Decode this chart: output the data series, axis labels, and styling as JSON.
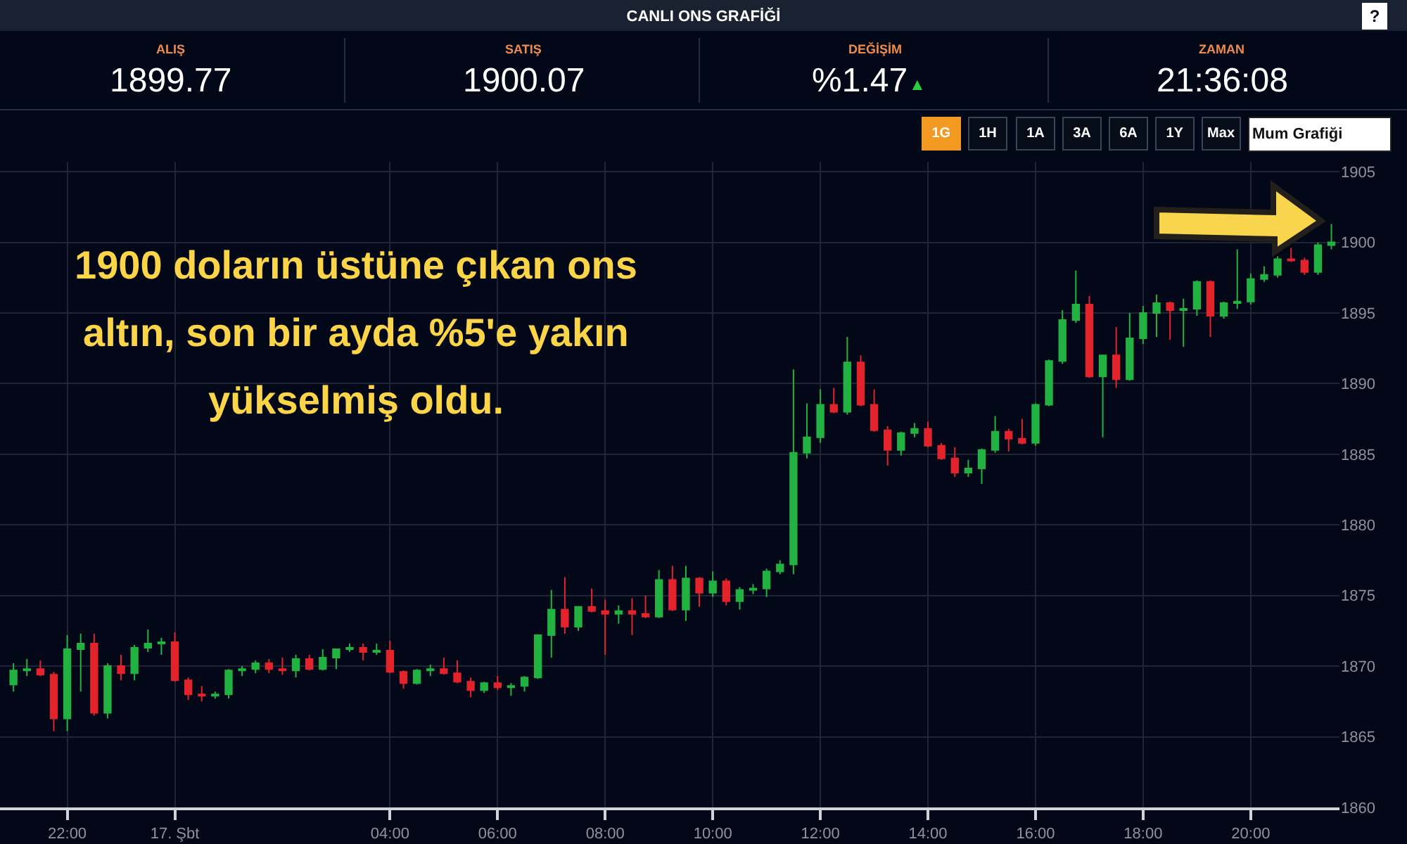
{
  "chart_data": {
    "type": "candlestick",
    "title": "CANLI ONS GRAFİĞİ",
    "x": [
      "--02-16T21:00",
      "--02-16T21:15",
      "--02-16T21:30",
      "--02-16T21:45",
      "--02-16T22:00",
      "--02-16T22:15",
      "--02-16T22:30",
      "--02-16T22:45",
      "--02-16T23:00",
      "--02-16T23:15",
      "--02-16T23:30",
      "--02-16T23:45",
      "--02-17T00:00",
      "--02-17T00:15",
      "--02-17T00:30",
      "--02-17T00:45",
      "--02-17T01:00",
      "--02-17T01:15",
      "--02-17T01:30",
      "--02-17T01:45",
      "--02-17T02:00",
      "--02-17T02:15",
      "--02-17T02:30",
      "--02-17T02:45",
      "--02-17T03:00",
      "--02-17T03:15",
      "--02-17T03:30",
      "--02-17T03:45",
      "--02-17T04:00",
      "--02-17T04:15",
      "--02-17T04:30",
      "--02-17T04:45",
      "--02-17T05:00",
      "--02-17T05:15",
      "--02-17T05:30",
      "--02-17T05:45",
      "--02-17T06:00",
      "--02-17T06:15",
      "--02-17T06:30",
      "--02-17T06:45",
      "--02-17T07:00",
      "--02-17T07:15",
      "--02-17T07:30",
      "--02-17T07:45",
      "--02-17T08:00",
      "--02-17T08:15",
      "--02-17T08:30",
      "--02-17T08:45",
      "--02-17T09:00",
      "--02-17T09:15",
      "--02-17T09:30",
      "--02-17T09:45",
      "--02-17T10:00",
      "--02-17T10:15",
      "--02-17T10:30",
      "--02-17T10:45",
      "--02-17T11:00",
      "--02-17T11:15",
      "--02-17T11:30",
      "--02-17T11:45",
      "--02-17T12:00",
      "--02-17T12:15",
      "--02-17T12:30",
      "--02-17T12:45",
      "--02-17T13:00",
      "--02-17T13:15",
      "--02-17T13:30",
      "--02-17T13:45",
      "--02-17T14:00",
      "--02-17T14:15",
      "--02-17T14:30",
      "--02-17T14:45",
      "--02-17T15:00",
      "--02-17T15:15",
      "--02-17T15:30",
      "--02-17T15:45",
      "--02-17T16:00",
      "--02-17T16:15",
      "--02-17T16:30",
      "--02-17T16:45",
      "--02-17T17:00",
      "--02-17T17:15",
      "--02-17T17:30",
      "--02-17T17:45",
      "--02-17T18:00",
      "--02-17T18:15",
      "--02-17T18:30",
      "--02-17T18:45",
      "--02-17T19:00",
      "--02-17T19:15",
      "--02-17T19:30",
      "--02-17T19:45",
      "--02-17T20:00",
      "--02-17T20:15",
      "--02-17T20:30",
      "--02-17T20:45",
      "--02-17T21:00",
      "--02-17T21:15",
      "--02-17T21:30"
    ],
    "ohlc": [
      [
        1868.7,
        1870.2,
        1868.2,
        1869.7
      ],
      [
        1869.7,
        1870.5,
        1869.3,
        1869.8
      ],
      [
        1869.8,
        1870.4,
        1869.3,
        1869.4
      ],
      [
        1869.4,
        1869.6,
        1865.4,
        1866.3
      ],
      [
        1866.3,
        1872.2,
        1865.4,
        1871.2
      ],
      [
        1871.2,
        1872.3,
        1868.2,
        1871.6
      ],
      [
        1871.6,
        1872.3,
        1866.5,
        1866.7
      ],
      [
        1866.7,
        1870.2,
        1866.3,
        1870.0
      ],
      [
        1870.0,
        1870.8,
        1869.0,
        1869.5
      ],
      [
        1869.5,
        1871.5,
        1869.0,
        1871.3
      ],
      [
        1871.3,
        1872.6,
        1871.0,
        1871.6
      ],
      [
        1871.6,
        1872.0,
        1870.8,
        1871.7
      ],
      [
        1871.7,
        1872.4,
        1868.9,
        1869.0
      ],
      [
        1869.0,
        1869.2,
        1867.6,
        1868.0
      ],
      [
        1868.0,
        1868.6,
        1867.5,
        1867.9
      ],
      [
        1867.9,
        1868.2,
        1867.7,
        1868.0
      ],
      [
        1868.0,
        1869.8,
        1867.7,
        1869.7
      ],
      [
        1869.7,
        1870.0,
        1869.3,
        1869.8
      ],
      [
        1869.8,
        1870.4,
        1869.5,
        1870.2
      ],
      [
        1870.2,
        1870.5,
        1869.5,
        1869.8
      ],
      [
        1869.8,
        1870.6,
        1869.4,
        1869.7
      ],
      [
        1869.7,
        1870.8,
        1869.2,
        1870.5
      ],
      [
        1870.5,
        1870.8,
        1869.7,
        1869.8
      ],
      [
        1869.8,
        1871.2,
        1869.7,
        1870.6
      ],
      [
        1870.6,
        1871.2,
        1869.8,
        1871.2
      ],
      [
        1871.2,
        1871.6,
        1871.0,
        1871.3
      ],
      [
        1871.3,
        1871.6,
        1870.4,
        1871.0
      ],
      [
        1871.0,
        1871.6,
        1870.8,
        1871.1
      ],
      [
        1871.1,
        1871.8,
        1869.5,
        1869.6
      ],
      [
        1869.6,
        1869.7,
        1868.4,
        1868.8
      ],
      [
        1868.8,
        1869.8,
        1868.7,
        1869.7
      ],
      [
        1869.7,
        1870.1,
        1869.3,
        1869.8
      ],
      [
        1869.8,
        1870.6,
        1869.4,
        1869.5
      ],
      [
        1869.5,
        1870.4,
        1868.8,
        1868.9
      ],
      [
        1868.9,
        1869.2,
        1867.8,
        1868.3
      ],
      [
        1868.3,
        1868.9,
        1868.1,
        1868.8
      ],
      [
        1868.8,
        1869.3,
        1868.3,
        1868.5
      ],
      [
        1868.5,
        1868.8,
        1867.9,
        1868.6
      ],
      [
        1868.6,
        1869.3,
        1868.2,
        1869.2
      ],
      [
        1869.2,
        1872.2,
        1869.1,
        1872.2
      ],
      [
        1872.2,
        1875.4,
        1870.6,
        1874.0
      ],
      [
        1874.0,
        1876.3,
        1872.3,
        1872.8
      ],
      [
        1872.8,
        1874.2,
        1872.5,
        1874.2
      ],
      [
        1874.2,
        1875.5,
        1873.8,
        1873.9
      ],
      [
        1873.9,
        1874.7,
        1870.8,
        1873.7
      ],
      [
        1873.7,
        1874.3,
        1873.0,
        1873.9
      ],
      [
        1873.9,
        1874.8,
        1872.2,
        1873.7
      ],
      [
        1873.7,
        1875.0,
        1873.4,
        1873.5
      ],
      [
        1873.5,
        1876.8,
        1873.4,
        1876.1
      ],
      [
        1876.1,
        1877.1,
        1873.9,
        1874.0
      ],
      [
        1874.0,
        1877.1,
        1873.2,
        1876.2
      ],
      [
        1876.2,
        1876.3,
        1874.2,
        1875.2
      ],
      [
        1875.2,
        1876.7,
        1874.9,
        1876.0
      ],
      [
        1876.0,
        1876.2,
        1874.3,
        1874.6
      ],
      [
        1874.6,
        1875.6,
        1874.0,
        1875.4
      ],
      [
        1875.4,
        1875.8,
        1875.1,
        1875.5
      ],
      [
        1875.5,
        1876.9,
        1874.9,
        1876.7
      ],
      [
        1876.7,
        1877.5,
        1876.5,
        1877.2
      ],
      [
        1877.2,
        1891.0,
        1876.5,
        1885.1
      ],
      [
        1885.1,
        1888.6,
        1884.7,
        1886.2
      ],
      [
        1886.2,
        1889.6,
        1885.8,
        1888.5
      ],
      [
        1888.5,
        1889.7,
        1887.9,
        1888.0
      ],
      [
        1888.0,
        1893.3,
        1887.8,
        1891.5
      ],
      [
        1891.5,
        1892.0,
        1888.4,
        1888.5
      ],
      [
        1888.5,
        1889.6,
        1886.6,
        1886.7
      ],
      [
        1886.7,
        1887.0,
        1884.2,
        1885.3
      ],
      [
        1885.3,
        1886.6,
        1884.9,
        1886.5
      ],
      [
        1886.5,
        1887.2,
        1886.2,
        1886.8
      ],
      [
        1886.8,
        1887.3,
        1885.5,
        1885.6
      ],
      [
        1885.6,
        1885.8,
        1884.6,
        1884.7
      ],
      [
        1884.7,
        1885.5,
        1883.4,
        1883.7
      ],
      [
        1883.7,
        1884.6,
        1883.4,
        1884.0
      ],
      [
        1884.0,
        1885.4,
        1882.9,
        1885.3
      ],
      [
        1885.3,
        1887.7,
        1885.1,
        1886.6
      ],
      [
        1886.6,
        1886.8,
        1885.2,
        1886.1
      ],
      [
        1886.1,
        1887.5,
        1885.7,
        1885.8
      ],
      [
        1885.8,
        1888.6,
        1885.6,
        1888.5
      ],
      [
        1888.5,
        1891.7,
        1888.4,
        1891.6
      ],
      [
        1891.6,
        1895.2,
        1891.4,
        1894.5
      ],
      [
        1894.5,
        1898.0,
        1894.3,
        1895.6
      ],
      [
        1895.6,
        1896.2,
        1890.4,
        1890.5
      ],
      [
        1890.5,
        1892.0,
        1886.2,
        1892.0
      ],
      [
        1892.0,
        1894.0,
        1889.7,
        1890.3
      ],
      [
        1890.3,
        1895.0,
        1890.2,
        1893.2
      ],
      [
        1893.2,
        1895.5,
        1892.8,
        1895.0
      ],
      [
        1895.0,
        1896.3,
        1893.3,
        1895.7
      ],
      [
        1895.7,
        1895.8,
        1893.1,
        1895.2
      ],
      [
        1895.2,
        1896.0,
        1892.6,
        1895.3
      ],
      [
        1895.3,
        1897.3,
        1894.8,
        1897.2
      ],
      [
        1897.2,
        1897.3,
        1893.3,
        1894.8
      ],
      [
        1894.8,
        1895.8,
        1894.6,
        1895.7
      ],
      [
        1895.7,
        1899.5,
        1895.3,
        1895.8
      ],
      [
        1895.8,
        1897.8,
        1895.6,
        1897.4
      ],
      [
        1897.4,
        1898.3,
        1897.2,
        1897.7
      ],
      [
        1897.7,
        1899.0,
        1897.5,
        1898.8
      ],
      [
        1898.8,
        1899.6,
        1898.6,
        1898.7
      ],
      [
        1898.7,
        1898.9,
        1897.7,
        1897.9
      ],
      [
        1897.9,
        1900.0,
        1897.7,
        1899.8
      ],
      [
        1899.8,
        1901.3,
        1899.5,
        1900.0
      ]
    ],
    "colors": [
      "#21b241",
      "#21b241",
      "#e3232c",
      "#e3232c",
      "#21b241",
      "#21b241",
      "#e3232c",
      "#21b241",
      "#e3232c",
      "#21b241",
      "#21b241",
      "#21b241",
      "#e3232c",
      "#e3232c",
      "#e3232c",
      "#21b241",
      "#21b241",
      "#21b241",
      "#21b241",
      "#e3232c",
      "#e3232c",
      "#21b241",
      "#e3232c",
      "#21b241",
      "#21b241",
      "#21b241",
      "#e3232c",
      "#21b241",
      "#e3232c",
      "#e3232c",
      "#21b241",
      "#21b241",
      "#e3232c",
      "#e3232c",
      "#e3232c",
      "#21b241",
      "#e3232c",
      "#21b241",
      "#21b241",
      "#21b241",
      "#21b241",
      "#e3232c",
      "#21b241",
      "#e3232c",
      "#e3232c",
      "#21b241",
      "#e3232c",
      "#e3232c",
      "#21b241",
      "#e3232c",
      "#21b241",
      "#e3232c",
      "#21b241",
      "#e3232c",
      "#21b241",
      "#21b241",
      "#21b241",
      "#21b241",
      "#21b241",
      "#21b241",
      "#21b241",
      "#e3232c",
      "#21b241",
      "#e3232c",
      "#e3232c",
      "#e3232c",
      "#21b241",
      "#21b241",
      "#e3232c",
      "#e3232c",
      "#e3232c",
      "#21b241",
      "#21b241",
      "#21b241",
      "#e3232c",
      "#e3232c",
      "#21b241",
      "#21b241",
      "#21b241",
      "#21b241",
      "#e3232c",
      "#21b241",
      "#e3232c",
      "#21b241",
      "#21b241",
      "#21b241",
      "#e3232c",
      "#21b241",
      "#21b241",
      "#e3232c",
      "#21b241",
      "#21b241",
      "#21b241",
      "#21b241",
      "#21b241",
      "#e3232c",
      "#e3232c",
      "#21b241",
      "#21b241"
    ],
    "xlim": [
      "--02-16T20:45",
      "--02-17T21:39"
    ],
    "xticks": [
      {
        "value": "--02-16T22:00",
        "label": "22:00"
      },
      {
        "value": "--02-17",
        "label": "17. Şbt"
      },
      {
        "value": "--02-17T04:00",
        "label": "04:00"
      },
      {
        "value": "--02-17T06:00",
        "label": "06:00"
      },
      {
        "value": "--02-17T08:00",
        "label": "08:00"
      },
      {
        "value": "--02-17T10:00",
        "label": "10:00"
      },
      {
        "value": "--02-17T12:00",
        "label": "12:00"
      },
      {
        "value": "--02-17T14:00",
        "label": "14:00"
      },
      {
        "value": "--02-17T16:00",
        "label": "16:00"
      },
      {
        "value": "--02-17T18:00",
        "label": "18:00"
      },
      {
        "value": "--02-17T20:00",
        "label": "20:00"
      }
    ],
    "ylim": [
      1860,
      1905.7
    ],
    "yticks": [
      1860,
      1865,
      1870,
      1875,
      1880,
      1885,
      1890,
      1895,
      1900,
      1905
    ],
    "grid": true,
    "annotations": [
      "ALIŞ",
      "1899.77",
      "SATIŞ",
      "1900.07",
      "DEĞİŞİM",
      "%1.47",
      "▲",
      "ZAMAN",
      "21:36:08",
      "1G",
      "1H",
      "1A",
      "3A",
      "6A",
      "1Y",
      "Max",
      "Mum Grafiği",
      "?",
      "1900 doların üstüne çıkan ons\naltın, son bir ayda %5'e yakın\nyükselmiş oldu."
    ]
  }
}
